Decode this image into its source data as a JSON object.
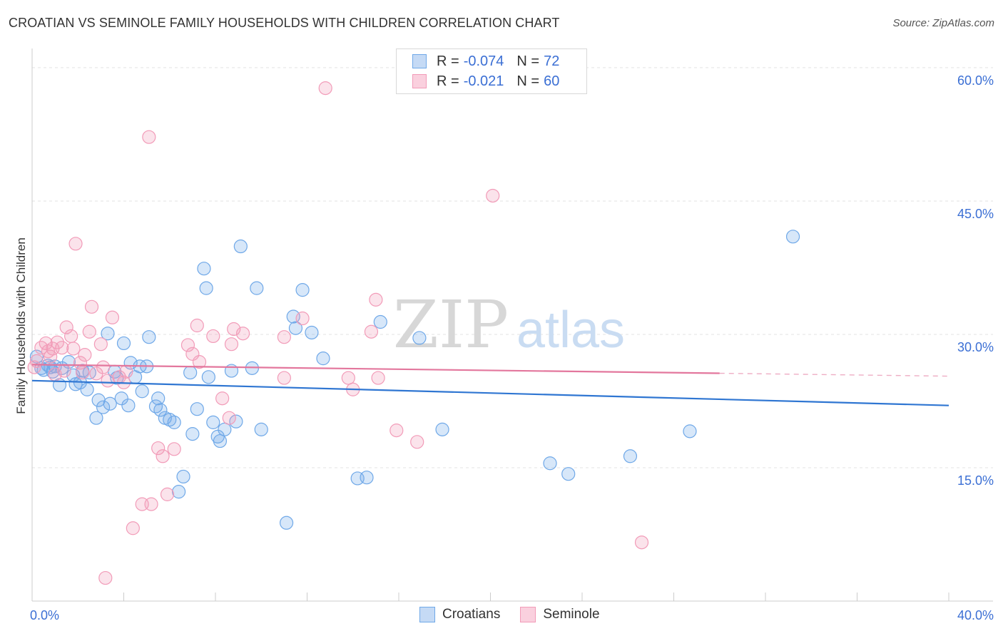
{
  "header": {
    "title": "CROATIAN VS SEMINOLE FAMILY HOUSEHOLDS WITH CHILDREN CORRELATION CHART",
    "source": "Source: ZipAtlas.com"
  },
  "watermark": {
    "zip": "ZIP",
    "atlas": "atlas"
  },
  "legend": {
    "rows": [
      {
        "r_label": "R = ",
        "r_value": "-0.074",
        "n_label": "N = ",
        "n_value": "72",
        "color": "#6fa8e8"
      },
      {
        "r_label": "R = ",
        "r_value": "-0.021",
        "n_label": "N = ",
        "n_value": "60",
        "color": "#f29bb8"
      }
    ]
  },
  "bottom_legend": {
    "series1": "Croatians",
    "series2": "Seminole"
  },
  "chart_data": {
    "type": "scatter",
    "title": "CROATIAN VS SEMINOLE FAMILY HOUSEHOLDS WITH CHILDREN CORRELATION CHART",
    "xlabel": "",
    "ylabel": "Family Households with Children",
    "xlim": [
      0,
      40
    ],
    "ylim": [
      0,
      62
    ],
    "x_tick_labels": [
      "0.0%",
      "40.0%"
    ],
    "y_ticks": [
      15,
      30,
      45,
      60
    ],
    "y_tick_labels": [
      "15.0%",
      "30.0%",
      "45.0%",
      "60.0%"
    ],
    "grid": true,
    "series": [
      {
        "name": "Croatians",
        "color": "#6fa8e8",
        "trend": {
          "x0": 0,
          "y0": 24.8,
          "x1": 40,
          "y1": 22.0,
          "dashed_from": null
        },
        "points": [
          [
            0.2,
            27.5
          ],
          [
            0.4,
            26.2
          ],
          [
            0.5,
            26.0
          ],
          [
            0.7,
            26.5
          ],
          [
            0.8,
            26.3
          ],
          [
            0.9,
            25.8
          ],
          [
            1.0,
            26.4
          ],
          [
            1.2,
            24.3
          ],
          [
            1.3,
            26.2
          ],
          [
            1.6,
            26.9
          ],
          [
            1.8,
            25.4
          ],
          [
            1.9,
            24.4
          ],
          [
            2.1,
            24.6
          ],
          [
            2.2,
            25.9
          ],
          [
            2.4,
            23.8
          ],
          [
            2.5,
            25.7
          ],
          [
            2.8,
            20.6
          ],
          [
            2.9,
            22.6
          ],
          [
            3.1,
            21.8
          ],
          [
            3.3,
            30.1
          ],
          [
            3.4,
            22.2
          ],
          [
            3.6,
            25.8
          ],
          [
            3.7,
            25.1
          ],
          [
            3.9,
            22.8
          ],
          [
            4.0,
            29.0
          ],
          [
            4.2,
            22.0
          ],
          [
            4.3,
            26.8
          ],
          [
            4.5,
            25.2
          ],
          [
            4.7,
            26.4
          ],
          [
            4.8,
            23.6
          ],
          [
            5.0,
            26.4
          ],
          [
            5.1,
            29.7
          ],
          [
            5.4,
            21.9
          ],
          [
            5.5,
            22.8
          ],
          [
            5.6,
            21.5
          ],
          [
            5.8,
            20.6
          ],
          [
            6.0,
            20.4
          ],
          [
            6.2,
            20.1
          ],
          [
            6.4,
            12.3
          ],
          [
            6.6,
            14.0
          ],
          [
            6.9,
            25.7
          ],
          [
            7.0,
            18.8
          ],
          [
            7.2,
            21.6
          ],
          [
            7.5,
            37.4
          ],
          [
            7.6,
            35.2
          ],
          [
            7.7,
            25.2
          ],
          [
            7.9,
            20.1
          ],
          [
            8.1,
            18.5
          ],
          [
            8.2,
            18.0
          ],
          [
            8.4,
            19.3
          ],
          [
            8.7,
            25.9
          ],
          [
            8.9,
            20.2
          ],
          [
            9.1,
            39.9
          ],
          [
            9.6,
            26.2
          ],
          [
            9.8,
            35.2
          ],
          [
            10.0,
            19.3
          ],
          [
            11.1,
            8.8
          ],
          [
            11.4,
            32.0
          ],
          [
            11.5,
            30.7
          ],
          [
            11.8,
            35.0
          ],
          [
            12.2,
            30.2
          ],
          [
            12.7,
            27.3
          ],
          [
            14.2,
            13.8
          ],
          [
            14.6,
            13.9
          ],
          [
            15.2,
            31.4
          ],
          [
            16.9,
            29.6
          ],
          [
            17.9,
            19.3
          ],
          [
            22.6,
            15.5
          ],
          [
            23.4,
            14.3
          ],
          [
            26.1,
            16.3
          ],
          [
            28.7,
            19.1
          ],
          [
            33.2,
            41.0
          ]
        ]
      },
      {
        "name": "Seminole",
        "color": "#f29bb8",
        "trend": {
          "x0": 0,
          "y0": 26.6,
          "x1": 40,
          "y1": 25.3,
          "dashed_from": 30
        },
        "points": [
          [
            0.1,
            26.3
          ],
          [
            0.2,
            27.0
          ],
          [
            0.4,
            28.5
          ],
          [
            0.6,
            29.0
          ],
          [
            0.7,
            28.1
          ],
          [
            0.8,
            27.5
          ],
          [
            0.9,
            28.4
          ],
          [
            1.0,
            25.5
          ],
          [
            1.1,
            29.1
          ],
          [
            1.3,
            28.5
          ],
          [
            1.4,
            25.9
          ],
          [
            1.5,
            30.8
          ],
          [
            1.7,
            29.8
          ],
          [
            1.8,
            28.4
          ],
          [
            1.9,
            40.2
          ],
          [
            2.1,
            26.8
          ],
          [
            2.2,
            25.7
          ],
          [
            2.3,
            27.7
          ],
          [
            2.5,
            30.3
          ],
          [
            2.6,
            33.1
          ],
          [
            2.8,
            25.6
          ],
          [
            3.0,
            28.9
          ],
          [
            3.1,
            26.3
          ],
          [
            3.3,
            24.8
          ],
          [
            3.5,
            31.9
          ],
          [
            3.8,
            25.2
          ],
          [
            4.0,
            24.6
          ],
          [
            4.1,
            25.8
          ],
          [
            4.4,
            8.2
          ],
          [
            4.8,
            10.9
          ],
          [
            5.1,
            52.2
          ],
          [
            5.2,
            10.9
          ],
          [
            5.5,
            17.2
          ],
          [
            5.7,
            16.3
          ],
          [
            5.9,
            12.0
          ],
          [
            6.2,
            17.1
          ],
          [
            6.8,
            28.8
          ],
          [
            7.0,
            27.8
          ],
          [
            7.2,
            31.0
          ],
          [
            7.3,
            26.9
          ],
          [
            7.9,
            29.8
          ],
          [
            8.3,
            22.8
          ],
          [
            8.6,
            20.6
          ],
          [
            8.7,
            28.9
          ],
          [
            8.8,
            30.6
          ],
          [
            9.2,
            30.1
          ],
          [
            11.0,
            29.7
          ],
          [
            11.0,
            25.1
          ],
          [
            11.8,
            31.8
          ],
          [
            12.8,
            57.7
          ],
          [
            13.8,
            25.1
          ],
          [
            14.0,
            23.8
          ],
          [
            14.8,
            30.3
          ],
          [
            15.0,
            33.9
          ],
          [
            15.1,
            25.1
          ],
          [
            15.9,
            19.2
          ],
          [
            16.8,
            17.9
          ],
          [
            20.1,
            45.6
          ],
          [
            26.6,
            6.6
          ],
          [
            3.2,
            2.6
          ]
        ]
      }
    ]
  }
}
